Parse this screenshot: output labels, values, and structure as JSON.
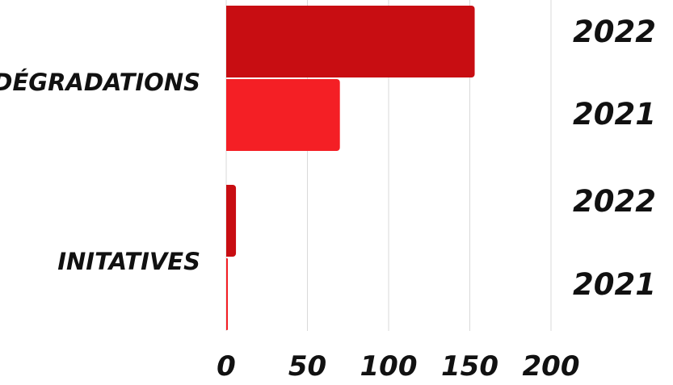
{
  "chart_data": {
    "type": "bar",
    "orientation": "horizontal",
    "categories": [
      "DÉGRADATIONS",
      "INITATIVES"
    ],
    "series": [
      {
        "name": "2022",
        "values": [
          153,
          6
        ],
        "color": "#C80D12"
      },
      {
        "name": "2021",
        "values": [
          70,
          1
        ],
        "color": "#F41F25"
      }
    ],
    "bar_side_labels": [
      "2022",
      "2021",
      "2022",
      "2021"
    ],
    "x_ticks": [
      "0",
      "50",
      "100",
      "150",
      "200"
    ],
    "xlim": [
      0,
      200
    ],
    "grid": true,
    "title": "",
    "xlabel": "",
    "ylabel": ""
  }
}
